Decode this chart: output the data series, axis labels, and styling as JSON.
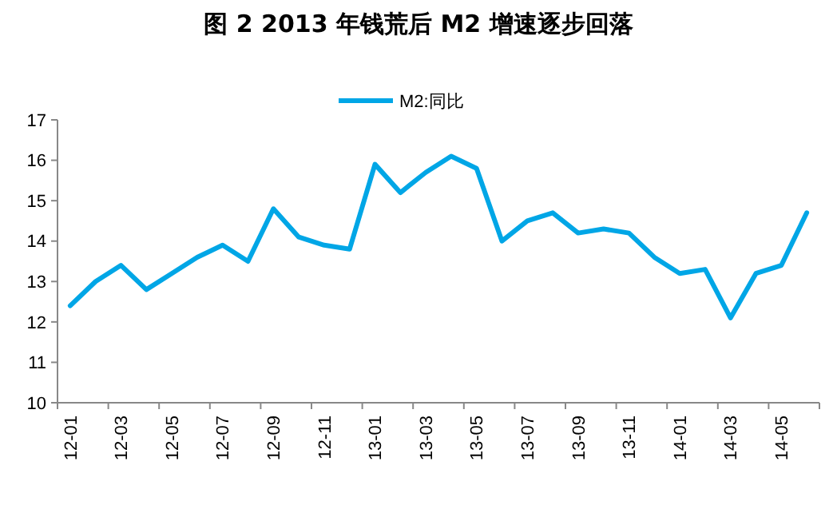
{
  "chart_data": {
    "type": "line",
    "title": "图 2   2013 年钱荒后 M2 增速逐步回落",
    "categories": [
      "12-01",
      null,
      "12-03",
      null,
      "12-05",
      null,
      "12-07",
      null,
      "12-09",
      null,
      "12-11",
      null,
      "13-01",
      null,
      "13-03",
      null,
      "13-05",
      null,
      "13-07",
      null,
      "13-09",
      null,
      "13-11",
      null,
      "14-01",
      null,
      "14-03",
      null,
      "14-05",
      null
    ],
    "series": [
      {
        "name": "M2:同比",
        "color": "#00a6e6",
        "values": [
          12.4,
          13.0,
          13.4,
          12.8,
          13.2,
          13.6,
          13.9,
          13.5,
          14.8,
          14.1,
          13.9,
          13.8,
          15.9,
          15.2,
          15.7,
          16.1,
          15.8,
          14.0,
          14.5,
          14.7,
          14.2,
          14.3,
          14.2,
          13.6,
          13.2,
          13.3,
          12.1,
          13.2,
          13.4,
          14.7
        ]
      }
    ],
    "ylim": [
      10,
      17
    ],
    "yticks": [
      10,
      11,
      12,
      13,
      14,
      15,
      16,
      17
    ],
    "grid": false,
    "legend": "top",
    "marker": "none",
    "line_style": "solid"
  }
}
